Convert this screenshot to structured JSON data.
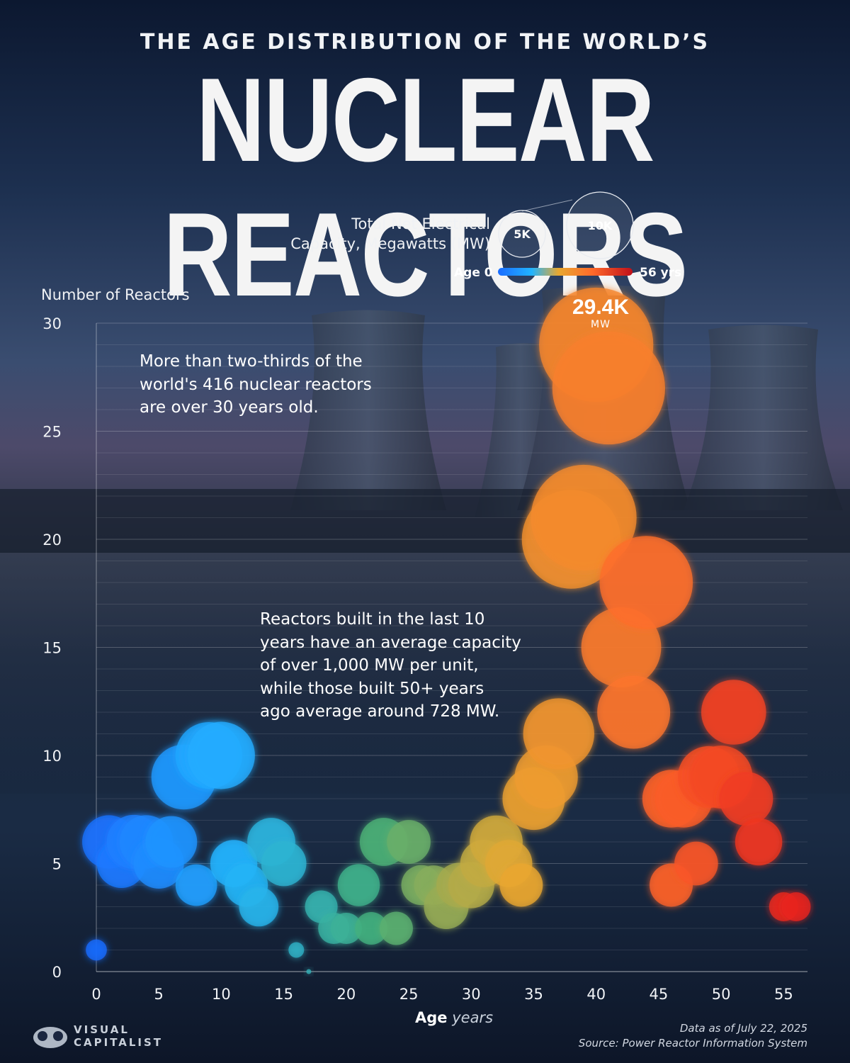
{
  "header": {
    "subtitle": "THE AGE DISTRIBUTION OF THE WORLD’S",
    "title": "NUCLEAR REACTORS"
  },
  "legend": {
    "size_label_line1": "Total Net Electrical",
    "size_label_line2": "Capacity, Megawatts (MW)",
    "size_5k": "5K",
    "size_10k": "10K",
    "color_start": "Age 0",
    "color_end": "56 yrs",
    "colors": [
      "#1a6cff",
      "#22b4ff",
      "#43b07a",
      "#e8a830",
      "#ff6a2a",
      "#e8231c"
    ]
  },
  "annotations": {
    "note1_line1": "More than two-thirds of the",
    "note1_line2": "world's 416 nuclear reactors",
    "note1_line3": "are over 30 years old.",
    "note2_line1": "Reactors built in the last 10",
    "note2_line2": "years have an average capacity",
    "note2_line3": "of over 1,000 MW per unit,",
    "note2_line4": "while those built 50+ years",
    "note2_line5": "ago average around 728 MW.",
    "peak_value": "29.4K",
    "peak_unit": "MW"
  },
  "footer": {
    "data_date": "Data as of July 22, 2025",
    "source": "Source: Power Reactor Information System",
    "logo_line1": "VISUAL",
    "logo_line2": "CAPITALIST"
  },
  "chart_data": {
    "type": "scatter",
    "subtype": "bubble",
    "ylabel": "Number of Reactors",
    "xlabel": "Age",
    "xlabel_unit": "years",
    "xlim": [
      0,
      56
    ],
    "ylim": [
      0,
      30
    ],
    "x_ticks": [
      0,
      5,
      10,
      15,
      20,
      25,
      30,
      35,
      40,
      45,
      50,
      55
    ],
    "y_ticks": [
      0,
      5,
      10,
      15,
      20,
      25,
      30
    ],
    "grid": "horizontal",
    "size_encoding": "Total Net Electrical Capacity, Megawatts (MW)",
    "color_encoding": "Age",
    "points": [
      {
        "age": 0,
        "reactors": 1,
        "mw": 1000
      },
      {
        "age": 1,
        "reactors": 6,
        "mw": 6400
      },
      {
        "age": 2,
        "reactors": 5,
        "mw": 5400
      },
      {
        "age": 3,
        "reactors": 6,
        "mw": 6600
      },
      {
        "age": 4,
        "reactors": 6,
        "mw": 6400
      },
      {
        "age": 5,
        "reactors": 5,
        "mw": 5700
      },
      {
        "age": 6,
        "reactors": 6,
        "mw": 6000
      },
      {
        "age": 7,
        "reactors": 9,
        "mw": 9500
      },
      {
        "age": 8,
        "reactors": 4,
        "mw": 3900
      },
      {
        "age": 9,
        "reactors": 10,
        "mw": 10000
      },
      {
        "age": 10,
        "reactors": 10,
        "mw": 10200
      },
      {
        "age": 11,
        "reactors": 5,
        "mw": 5000
      },
      {
        "age": 12,
        "reactors": 4,
        "mw": 4200
      },
      {
        "age": 13,
        "reactors": 3,
        "mw": 3500
      },
      {
        "age": 14,
        "reactors": 6,
        "mw": 5200
      },
      {
        "age": 15,
        "reactors": 5,
        "mw": 4600
      },
      {
        "age": 16,
        "reactors": 1,
        "mw": 400
      },
      {
        "age": 17,
        "reactors": 0,
        "mw": 0
      },
      {
        "age": 18,
        "reactors": 3,
        "mw": 2400
      },
      {
        "age": 19,
        "reactors": 2,
        "mw": 2200
      },
      {
        "age": 20,
        "reactors": 2,
        "mw": 2200
      },
      {
        "age": 21,
        "reactors": 4,
        "mw": 4000
      },
      {
        "age": 22,
        "reactors": 2,
        "mw": 2400
      },
      {
        "age": 23,
        "reactors": 6,
        "mw": 5200
      },
      {
        "age": 24,
        "reactors": 2,
        "mw": 2500
      },
      {
        "age": 25,
        "reactors": 6,
        "mw": 4300
      },
      {
        "age": 26,
        "reactors": 4,
        "mw": 3600
      },
      {
        "age": 27,
        "reactors": 4,
        "mw": 3500
      },
      {
        "age": 28,
        "reactors": 3,
        "mw": 4500
      },
      {
        "age": 29,
        "reactors": 4,
        "mw": 4500
      },
      {
        "age": 30,
        "reactors": 4,
        "mw": 4800
      },
      {
        "age": 31,
        "reactors": 5,
        "mw": 5000
      },
      {
        "age": 32,
        "reactors": 6,
        "mw": 6300
      },
      {
        "age": 33,
        "reactors": 5,
        "mw": 5000
      },
      {
        "age": 34,
        "reactors": 4,
        "mw": 4200
      },
      {
        "age": 35,
        "reactors": 8,
        "mw": 8800
      },
      {
        "age": 36,
        "reactors": 9,
        "mw": 9000
      },
      {
        "age": 37,
        "reactors": 11,
        "mw": 11400
      },
      {
        "age": 38,
        "reactors": 20,
        "mw": 22000
      },
      {
        "age": 39,
        "reactors": 21,
        "mw": 25200
      },
      {
        "age": 40,
        "reactors": 29,
        "mw": 29400
      },
      {
        "age": 41,
        "reactors": 27,
        "mw": 28700
      },
      {
        "age": 42,
        "reactors": 15,
        "mw": 14400
      },
      {
        "age": 43,
        "reactors": 12,
        "mw": 12000
      },
      {
        "age": 44,
        "reactors": 18,
        "mw": 19600
      },
      {
        "age": 46,
        "reactors": 8,
        "mw": 7500
      },
      {
        "age": 46,
        "reactors": 4,
        "mw": 4200
      },
      {
        "age": 47,
        "reactors": 8,
        "mw": 7500
      },
      {
        "age": 48,
        "reactors": 5,
        "mw": 4300
      },
      {
        "age": 49,
        "reactors": 9,
        "mw": 8600
      },
      {
        "age": 50,
        "reactors": 9,
        "mw": 8900
      },
      {
        "age": 51,
        "reactors": 12,
        "mw": 9500
      },
      {
        "age": 52,
        "reactors": 8,
        "mw": 6500
      },
      {
        "age": 53,
        "reactors": 6,
        "mw": 5000
      },
      {
        "age": 55,
        "reactors": 3,
        "mw": 1900
      },
      {
        "age": 56,
        "reactors": 3,
        "mw": 1900
      }
    ]
  }
}
